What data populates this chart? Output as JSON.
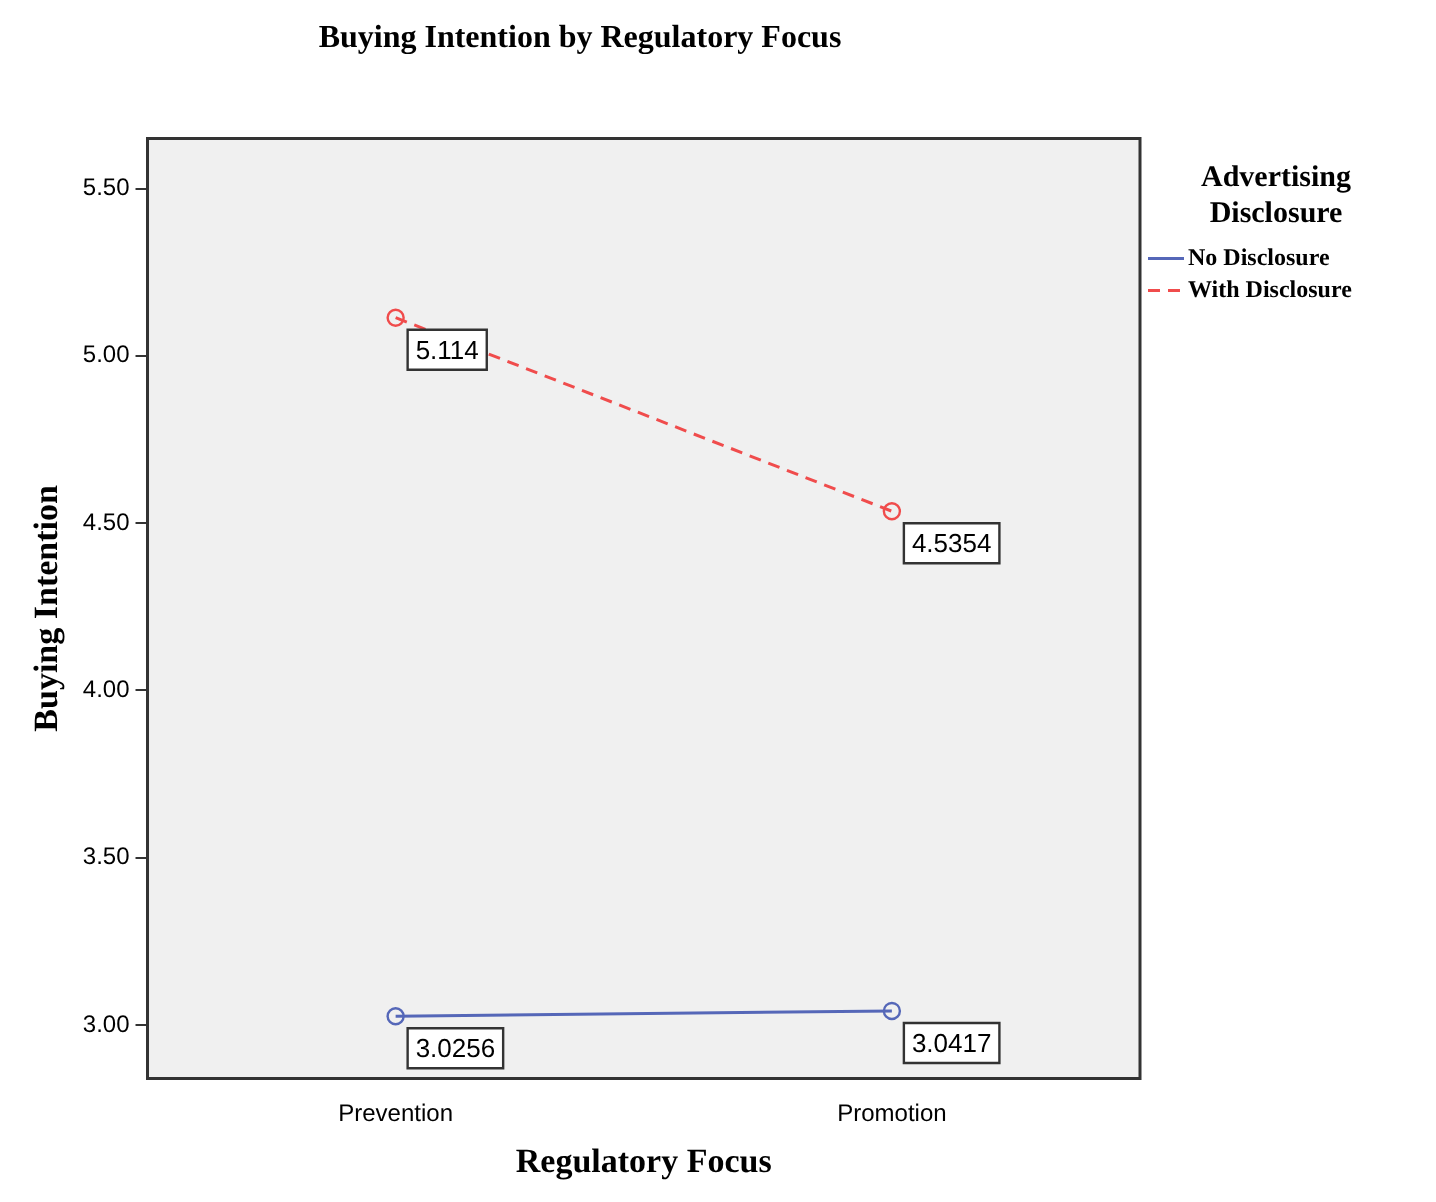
{
  "chart_data": {
    "type": "line",
    "title": "Buying Intention by Regulatory Focus",
    "xlabel": "Regulatory Focus",
    "ylabel": "Buying Intention",
    "legend_title": "Advertising Disclosure",
    "categories": [
      "Prevention",
      "Promotion"
    ],
    "series": [
      {
        "name": "No Disclosure",
        "color": "#5567b8",
        "values": [
          3.0256,
          3.0417
        ],
        "line_style": "solid"
      },
      {
        "name": "With Disclosure",
        "color": "#f04c4c",
        "values": [
          5.114,
          4.5354
        ],
        "line_style": "dashed"
      }
    ],
    "ylim": [
      2.84,
      5.65
    ],
    "yticks": [
      {
        "value": 3,
        "label": "3.00"
      },
      {
        "value": 3.5,
        "label": "3.50"
      },
      {
        "value": 4,
        "label": "4.00"
      },
      {
        "value": 4.5,
        "label": "4.50"
      },
      {
        "value": 5,
        "label": "5.00"
      },
      {
        "value": 5.5,
        "label": "5.50"
      }
    ],
    "grid": false,
    "legend": "right",
    "marker": "circle",
    "data_labels": true
  }
}
